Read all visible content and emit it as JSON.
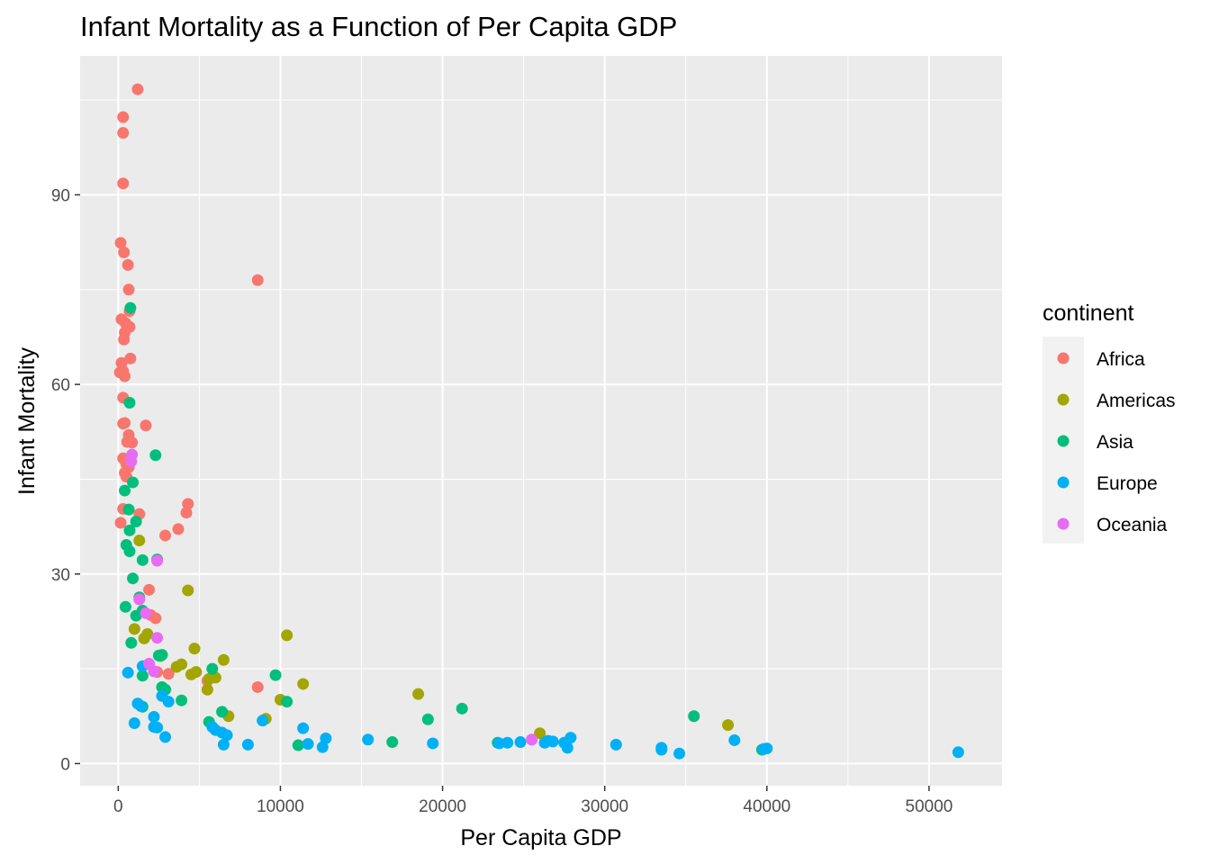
{
  "chart_data": {
    "type": "scatter",
    "title": "Infant Mortality as a Function of Per Capita GDP",
    "xlabel": "Per Capita GDP",
    "ylabel": "Infant Mortality",
    "xlim": [
      -2350,
      54500
    ],
    "ylim": [
      -3.5,
      112
    ],
    "xticks": [
      0,
      10000,
      20000,
      30000,
      40000,
      50000
    ],
    "yticks": [
      0,
      30,
      60,
      90
    ],
    "x_tick_labels": [
      "0",
      "10000",
      "20000",
      "30000",
      "40000",
      "50000"
    ],
    "y_tick_labels": [
      "0",
      "30",
      "60",
      "90"
    ],
    "grid": true,
    "panel_background": "#ebebeb",
    "legend": {
      "title": "continent",
      "position": "right"
    },
    "series": [
      {
        "name": "Africa",
        "color": "#F8766D",
        "points": [
          [
            1200,
            106.7
          ],
          [
            300,
            102.3
          ],
          [
            300,
            99.8
          ],
          [
            300,
            91.8
          ],
          [
            150,
            82.4
          ],
          [
            350,
            80.9
          ],
          [
            600,
            78.9
          ],
          [
            650,
            75
          ],
          [
            8600,
            76.5
          ],
          [
            700,
            71.6
          ],
          [
            200,
            70.3
          ],
          [
            450,
            69.7
          ],
          [
            700,
            69.1
          ],
          [
            400,
            68.2
          ],
          [
            350,
            67.1
          ],
          [
            750,
            64.1
          ],
          [
            200,
            63.4
          ],
          [
            100,
            61.9
          ],
          [
            300,
            62.1
          ],
          [
            400,
            61.3
          ],
          [
            300,
            57.9
          ],
          [
            300,
            53.8
          ],
          [
            400,
            53.9
          ],
          [
            1700,
            53.5
          ],
          [
            650,
            52
          ],
          [
            550,
            50.9
          ],
          [
            850,
            50.8
          ],
          [
            300,
            48.3
          ],
          [
            500,
            47.4
          ],
          [
            650,
            46.9
          ],
          [
            400,
            46
          ],
          [
            500,
            45.4
          ],
          [
            4300,
            41.1
          ],
          [
            4200,
            39.7
          ],
          [
            1300,
            39.5
          ],
          [
            300,
            40.3
          ],
          [
            150,
            38.1
          ],
          [
            3700,
            37.1
          ],
          [
            2900,
            36.1
          ],
          [
            1900,
            27.5
          ],
          [
            2300,
            23
          ],
          [
            2000,
            23.5
          ],
          [
            5500,
            13.1
          ],
          [
            3100,
            14.2
          ],
          [
            2400,
            14.5
          ],
          [
            8600,
            12.1
          ]
        ]
      },
      {
        "name": "Americas",
        "color": "#A3A500",
        "points": [
          [
            1300,
            35.3
          ],
          [
            4300,
            27.4
          ],
          [
            1000,
            21.3
          ],
          [
            1800,
            20.5
          ],
          [
            1600,
            19.8
          ],
          [
            10400,
            20.3
          ],
          [
            4700,
            18.2
          ],
          [
            2600,
            17
          ],
          [
            6500,
            16.4
          ],
          [
            3600,
            15.3
          ],
          [
            3900,
            15.7
          ],
          [
            4500,
            14.1
          ],
          [
            4800,
            14.5
          ],
          [
            5600,
            13.4
          ],
          [
            6000,
            13.6
          ],
          [
            11400,
            12.6
          ],
          [
            5500,
            11.7
          ],
          [
            18500,
            11
          ],
          [
            10000,
            10.1
          ],
          [
            6800,
            7.5
          ],
          [
            9100,
            7.1
          ],
          [
            26000,
            4.8
          ],
          [
            37600,
            6.1
          ]
        ]
      },
      {
        "name": "Asia",
        "color": "#00BF7D",
        "points": [
          [
            750,
            72.1
          ],
          [
            700,
            57.1
          ],
          [
            2300,
            48.8
          ],
          [
            900,
            44.5
          ],
          [
            400,
            43.2
          ],
          [
            650,
            40.2
          ],
          [
            1100,
            38.3
          ],
          [
            700,
            36.9
          ],
          [
            500,
            34.6
          ],
          [
            700,
            33.6
          ],
          [
            1500,
            32.2
          ],
          [
            2400,
            32.3
          ],
          [
            900,
            29.3
          ],
          [
            1300,
            26.3
          ],
          [
            450,
            24.8
          ],
          [
            1100,
            23.4
          ],
          [
            1500,
            24.2
          ],
          [
            800,
            19.1
          ],
          [
            2700,
            17.2
          ],
          [
            2500,
            17.1
          ],
          [
            5800,
            15
          ],
          [
            9700,
            14
          ],
          [
            1500,
            13.9
          ],
          [
            2700,
            12.1
          ],
          [
            2900,
            11.7
          ],
          [
            3900,
            10
          ],
          [
            10400,
            9.8
          ],
          [
            1500,
            9
          ],
          [
            6400,
            8.2
          ],
          [
            21200,
            8.7
          ],
          [
            19100,
            7
          ],
          [
            5600,
            6.6
          ],
          [
            35500,
            7.5
          ],
          [
            11100,
            2.9
          ],
          [
            16900,
            3.4
          ],
          [
            23400,
            3.3
          ],
          [
            39700,
            2.2
          ]
        ]
      },
      {
        "name": "Europe",
        "color": "#00B0F6",
        "points": [
          [
            600,
            14.4
          ],
          [
            1500,
            15.4
          ],
          [
            2200,
            7.4
          ],
          [
            1200,
            9.5
          ],
          [
            1400,
            9.1
          ],
          [
            2700,
            10.7
          ],
          [
            3100,
            9.8
          ],
          [
            1000,
            6.4
          ],
          [
            2200,
            5.8
          ],
          [
            2400,
            5.7
          ],
          [
            5800,
            5.8
          ],
          [
            6000,
            5.3
          ],
          [
            6700,
            4.5
          ],
          [
            6400,
            4.9
          ],
          [
            2900,
            4.2
          ],
          [
            6500,
            3
          ],
          [
            8000,
            3
          ],
          [
            8900,
            6.8
          ],
          [
            11400,
            5.6
          ],
          [
            11700,
            3.1
          ],
          [
            12800,
            4
          ],
          [
            12600,
            2.6
          ],
          [
            15400,
            3.8
          ],
          [
            19400,
            3.2
          ],
          [
            23500,
            3.2
          ],
          [
            24000,
            3.3
          ],
          [
            24800,
            3.4
          ],
          [
            26300,
            3.3
          ],
          [
            26500,
            3.6
          ],
          [
            26800,
            3.5
          ],
          [
            27500,
            3.3
          ],
          [
            27700,
            2.5
          ],
          [
            27900,
            4.1
          ],
          [
            30700,
            3
          ],
          [
            33500,
            2.2
          ],
          [
            33500,
            2.5
          ],
          [
            34600,
            1.6
          ],
          [
            38000,
            3.7
          ],
          [
            39800,
            2.3
          ],
          [
            40000,
            2.4
          ],
          [
            51800,
            1.8
          ]
        ]
      },
      {
        "name": "Oceania",
        "color": "#E76BF3",
        "points": [
          [
            850,
            48.9
          ],
          [
            800,
            47.8
          ],
          [
            2400,
            32.1
          ],
          [
            1300,
            26
          ],
          [
            1700,
            23.8
          ],
          [
            2400,
            19.9
          ],
          [
            1900,
            15.8
          ],
          [
            2200,
            14.6
          ],
          [
            25500,
            3.8
          ]
        ]
      }
    ]
  }
}
